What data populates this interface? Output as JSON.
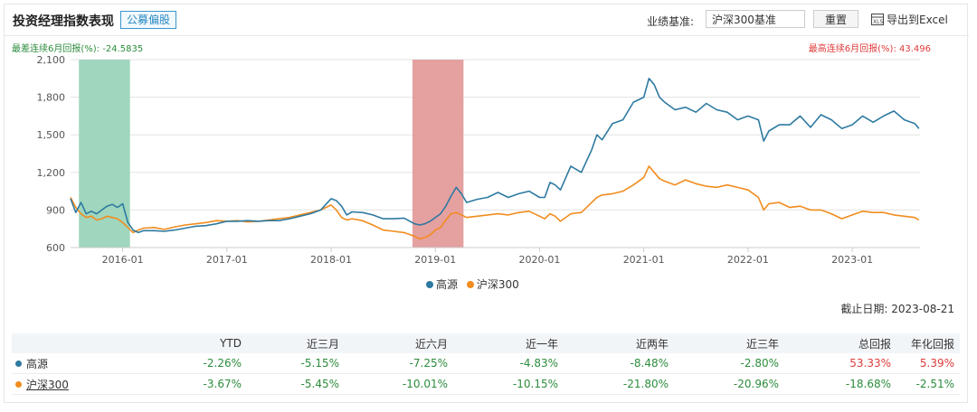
{
  "header": {
    "title": "投资经理指数表现",
    "tag": "公募偏股",
    "benchmark_label": "业绩基准:",
    "benchmark_value": "沪深300基准",
    "reset_label": "重置",
    "export_label": "导出到Excel"
  },
  "stats": {
    "worst_text": "最差连续6月回报(%): -24.5835",
    "best_text": "最高连续6月回报(%): 43.496"
  },
  "colors": {
    "manager": "#2e7aa1",
    "benchmark": "#f28c1e",
    "worst_band": "#9fd6bd",
    "best_band": "#e5a0a0",
    "negative": "#2c8c3c",
    "positive": "#e03a3a"
  },
  "chart_data": {
    "type": "line",
    "title": "",
    "xlabel": "",
    "ylabel": "",
    "ylim": [
      600,
      2100
    ],
    "yticks": [
      "600",
      "900",
      "1,200",
      "1,500",
      "1,800",
      "2,100"
    ],
    "ytick_values": [
      600,
      900,
      1200,
      1500,
      1800,
      2100
    ],
    "xlim": [
      2015.5,
      2023.65
    ],
    "xticks": [
      "2016-01",
      "2017-01",
      "2018-01",
      "2019-01",
      "2020-01",
      "2021-01",
      "2022-01",
      "2023-01"
    ],
    "xtick_values": [
      2016.0,
      2017.0,
      2018.0,
      2019.0,
      2020.0,
      2021.0,
      2022.0,
      2023.0
    ],
    "shaded_periods": [
      {
        "name": "worst-6m",
        "start": 2015.58,
        "end": 2016.07
      },
      {
        "name": "best-6m",
        "start": 2018.78,
        "end": 2019.27
      }
    ],
    "legend_position": "bottom-center",
    "series": [
      {
        "name": "高源",
        "x": [
          2015.5,
          2015.55,
          2015.6,
          2015.65,
          2015.7,
          2015.75,
          2015.8,
          2015.85,
          2015.9,
          2015.95,
          2016.0,
          2016.05,
          2016.1,
          2016.15,
          2016.2,
          2016.3,
          2016.4,
          2016.5,
          2016.6,
          2016.7,
          2016.8,
          2016.9,
          2017.0,
          2017.1,
          2017.2,
          2017.3,
          2017.4,
          2017.5,
          2017.6,
          2017.7,
          2017.8,
          2017.9,
          2018.0,
          2018.05,
          2018.1,
          2018.15,
          2018.2,
          2018.3,
          2018.4,
          2018.5,
          2018.6,
          2018.7,
          2018.8,
          2018.85,
          2018.9,
          2018.95,
          2019.0,
          2019.05,
          2019.1,
          2019.15,
          2019.2,
          2019.25,
          2019.3,
          2019.4,
          2019.5,
          2019.6,
          2019.7,
          2019.8,
          2019.9,
          2020.0,
          2020.05,
          2020.1,
          2020.15,
          2020.2,
          2020.3,
          2020.4,
          2020.5,
          2020.55,
          2020.6,
          2020.7,
          2020.8,
          2020.9,
          2021.0,
          2021.05,
          2021.1,
          2021.15,
          2021.2,
          2021.3,
          2021.4,
          2021.5,
          2021.6,
          2021.7,
          2021.8,
          2021.9,
          2022.0,
          2022.1,
          2022.15,
          2022.2,
          2022.3,
          2022.4,
          2022.5,
          2022.6,
          2022.7,
          2022.8,
          2022.9,
          2023.0,
          2023.1,
          2023.2,
          2023.3,
          2023.4,
          2023.5,
          2023.6,
          2023.64
        ],
        "y": [
          990,
          880,
          960,
          870,
          890,
          870,
          900,
          930,
          945,
          920,
          950,
          800,
          740,
          720,
          735,
          735,
          730,
          740,
          755,
          770,
          775,
          790,
          810,
          810,
          815,
          810,
          815,
          815,
          830,
          850,
          870,
          900,
          990,
          975,
          930,
          860,
          885,
          880,
          860,
          830,
          830,
          835,
          790,
          780,
          790,
          810,
          840,
          870,
          930,
          1010,
          1080,
          1030,
          960,
          985,
          1000,
          1040,
          1000,
          1030,
          1050,
          1000,
          1000,
          1120,
          1100,
          1060,
          1250,
          1200,
          1380,
          1500,
          1460,
          1590,
          1620,
          1760,
          1800,
          1950,
          1900,
          1800,
          1760,
          1700,
          1720,
          1680,
          1750,
          1700,
          1680,
          1620,
          1650,
          1620,
          1450,
          1530,
          1580,
          1580,
          1650,
          1560,
          1660,
          1620,
          1550,
          1580,
          1650,
          1600,
          1650,
          1690,
          1620,
          1590,
          1550
        ]
      },
      {
        "name": "沪深300",
        "x": [
          2015.5,
          2015.55,
          2015.6,
          2015.65,
          2015.7,
          2015.75,
          2015.8,
          2015.85,
          2015.9,
          2015.95,
          2016.0,
          2016.05,
          2016.1,
          2016.15,
          2016.2,
          2016.3,
          2016.4,
          2016.5,
          2016.6,
          2016.7,
          2016.8,
          2016.9,
          2017.0,
          2017.1,
          2017.2,
          2017.3,
          2017.4,
          2017.5,
          2017.6,
          2017.7,
          2017.8,
          2017.9,
          2018.0,
          2018.05,
          2018.1,
          2018.15,
          2018.2,
          2018.3,
          2018.4,
          2018.5,
          2018.6,
          2018.7,
          2018.8,
          2018.85,
          2018.9,
          2018.95,
          2019.0,
          2019.05,
          2019.1,
          2019.15,
          2019.2,
          2019.25,
          2019.3,
          2019.4,
          2019.5,
          2019.6,
          2019.7,
          2019.8,
          2019.9,
          2020.0,
          2020.05,
          2020.1,
          2020.15,
          2020.2,
          2020.3,
          2020.4,
          2020.5,
          2020.55,
          2020.6,
          2020.7,
          2020.8,
          2020.9,
          2021.0,
          2021.05,
          2021.1,
          2021.15,
          2021.2,
          2021.3,
          2021.4,
          2021.5,
          2021.6,
          2021.7,
          2021.8,
          2021.9,
          2022.0,
          2022.1,
          2022.15,
          2022.2,
          2022.3,
          2022.4,
          2022.5,
          2022.6,
          2022.7,
          2022.8,
          2022.9,
          2023.0,
          2023.1,
          2023.2,
          2023.3,
          2023.4,
          2023.5,
          2023.6,
          2023.64
        ],
        "y": [
          1000,
          920,
          870,
          840,
          850,
          820,
          830,
          850,
          840,
          830,
          800,
          760,
          720,
          740,
          755,
          760,
          745,
          765,
          780,
          790,
          800,
          815,
          810,
          815,
          805,
          810,
          820,
          830,
          840,
          860,
          880,
          900,
          940,
          900,
          840,
          820,
          830,
          815,
          780,
          740,
          730,
          720,
          690,
          670,
          680,
          700,
          740,
          760,
          820,
          870,
          880,
          860,
          840,
          850,
          860,
          870,
          860,
          880,
          890,
          850,
          830,
          870,
          850,
          810,
          870,
          880,
          960,
          1000,
          1020,
          1030,
          1050,
          1100,
          1160,
          1250,
          1200,
          1150,
          1130,
          1100,
          1140,
          1110,
          1090,
          1080,
          1100,
          1080,
          1060,
          1000,
          900,
          950,
          960,
          920,
          930,
          900,
          900,
          870,
          830,
          860,
          890,
          880,
          880,
          860,
          850,
          840,
          820
        ]
      }
    ]
  },
  "legend": {
    "manager": "高源",
    "benchmark": "沪深300"
  },
  "asof": "截止日期: 2023-08-21",
  "table": {
    "columns": [
      "",
      "YTD",
      "近三月",
      "近六月",
      "近一年",
      "近两年",
      "近三年",
      "总回报",
      "年化回报"
    ],
    "rows": [
      {
        "name": "高源",
        "values": [
          "-2.26%",
          "-5.15%",
          "-7.25%",
          "-4.83%",
          "-8.48%",
          "-2.80%",
          "53.33%",
          "5.39%"
        ]
      },
      {
        "name": "沪深300",
        "values": [
          "-3.67%",
          "-5.45%",
          "-10.01%",
          "-10.15%",
          "-21.80%",
          "-20.96%",
          "-18.68%",
          "-2.51%"
        ]
      }
    ]
  }
}
